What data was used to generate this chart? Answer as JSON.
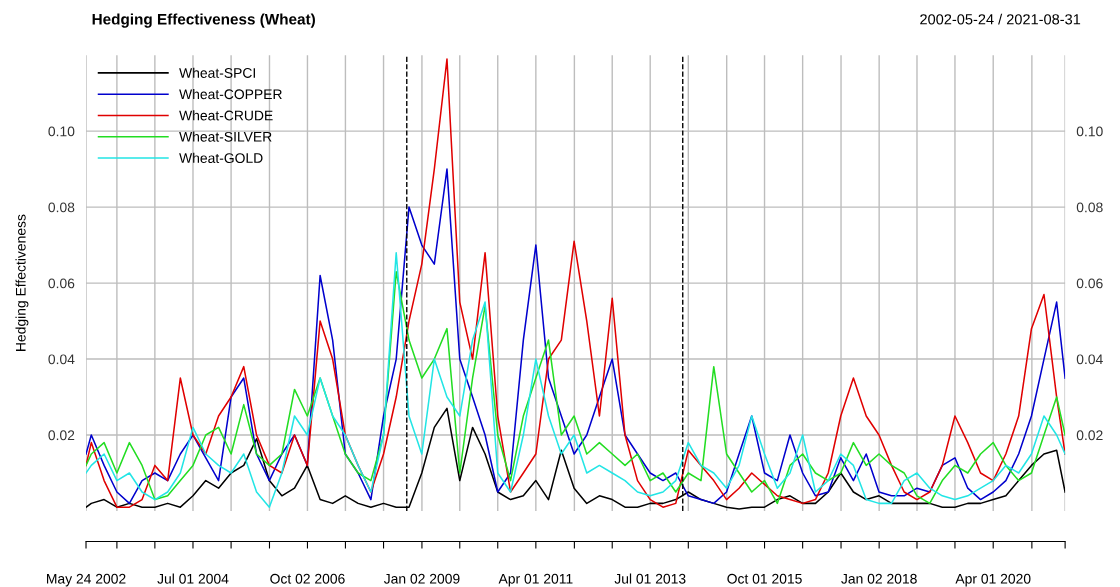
{
  "chart_data": {
    "type": "line",
    "title": "Hedging Effectiveness (Wheat)",
    "ylabel": "Hedging Effectiveness",
    "annotations": [
      "2002-05-24 / 2021-08-31"
    ],
    "x": [
      "2002-05-24",
      "2002-07",
      "2002-10",
      "2003-01",
      "2003-04",
      "2003-07",
      "2003-10",
      "2004-01",
      "2004-04",
      "2004-07",
      "2004-10",
      "2005-01",
      "2005-04",
      "2005-07",
      "2005-10",
      "2006-01",
      "2006-04",
      "2006-07",
      "2006-10",
      "2007-01",
      "2007-04",
      "2007-07",
      "2007-10",
      "2008-01",
      "2008-04",
      "2008-07",
      "2008-10",
      "2009-01",
      "2009-04",
      "2009-07",
      "2009-10",
      "2010-01",
      "2010-04",
      "2010-07",
      "2010-10",
      "2011-01",
      "2011-04",
      "2011-07",
      "2011-10",
      "2012-01",
      "2012-04",
      "2012-07",
      "2012-10",
      "2013-01",
      "2013-04",
      "2013-07",
      "2013-10",
      "2014-01",
      "2014-04",
      "2014-07",
      "2014-10",
      "2015-01",
      "2015-04",
      "2015-07",
      "2015-10",
      "2016-01",
      "2016-04",
      "2016-07",
      "2016-10",
      "2017-01",
      "2017-04",
      "2017-07",
      "2017-10",
      "2018-01",
      "2018-04",
      "2018-07",
      "2018-10",
      "2019-01",
      "2019-04",
      "2019-07",
      "2019-10",
      "2020-01",
      "2020-04",
      "2020-07",
      "2020-10",
      "2021-01",
      "2021-04",
      "2021-07",
      "2021-08-31"
    ],
    "series": [
      {
        "name": "Wheat-SPCI",
        "color": "#000000",
        "values": [
          0.001,
          0.002,
          0.003,
          0.001,
          0.002,
          0.001,
          0.001,
          0.002,
          0.001,
          0.004,
          0.008,
          0.006,
          0.01,
          0.012,
          0.019,
          0.008,
          0.004,
          0.006,
          0.012,
          0.003,
          0.002,
          0.004,
          0.002,
          0.001,
          0.002,
          0.001,
          0.001,
          0.01,
          0.022,
          0.027,
          0.008,
          0.022,
          0.015,
          0.005,
          0.003,
          0.004,
          0.008,
          0.003,
          0.016,
          0.006,
          0.002,
          0.004,
          0.003,
          0.001,
          0.001,
          0.002,
          0.002,
          0.003,
          0.005,
          0.003,
          0.002,
          0.001,
          0.0005,
          0.001,
          0.001,
          0.003,
          0.004,
          0.002,
          0.002,
          0.005,
          0.01,
          0.005,
          0.003,
          0.004,
          0.002,
          0.002,
          0.002,
          0.002,
          0.001,
          0.001,
          0.002,
          0.002,
          0.003,
          0.004,
          0.008,
          0.012,
          0.015,
          0.016,
          0.005
        ]
      },
      {
        "name": "Wheat-COPPER",
        "color": "#0000cd",
        "values": [
          0.015,
          0.02,
          0.012,
          0.005,
          0.002,
          0.008,
          0.01,
          0.008,
          0.015,
          0.02,
          0.014,
          0.008,
          0.03,
          0.035,
          0.015,
          0.008,
          0.015,
          0.02,
          0.012,
          0.062,
          0.045,
          0.015,
          0.01,
          0.003,
          0.025,
          0.04,
          0.08,
          0.07,
          0.065,
          0.09,
          0.04,
          0.03,
          0.02,
          0.005,
          0.01,
          0.045,
          0.07,
          0.035,
          0.025,
          0.015,
          0.02,
          0.03,
          0.04,
          0.02,
          0.015,
          0.01,
          0.008,
          0.01,
          0.004,
          0.003,
          0.002,
          0.005,
          0.015,
          0.025,
          0.01,
          0.008,
          0.02,
          0.01,
          0.004,
          0.005,
          0.014,
          0.008,
          0.015,
          0.005,
          0.004,
          0.004,
          0.006,
          0.005,
          0.012,
          0.014,
          0.006,
          0.003,
          0.005,
          0.008,
          0.015,
          0.025,
          0.04,
          0.055,
          0.035
        ]
      },
      {
        "name": "Wheat-CRUDE",
        "color": "#e00000",
        "values": [
          0.012,
          0.018,
          0.008,
          0.001,
          0.001,
          0.003,
          0.012,
          0.008,
          0.035,
          0.02,
          0.015,
          0.025,
          0.03,
          0.038,
          0.02,
          0.012,
          0.01,
          0.02,
          0.012,
          0.05,
          0.04,
          0.02,
          0.012,
          0.005,
          0.015,
          0.03,
          0.05,
          0.065,
          0.09,
          0.119,
          0.055,
          0.04,
          0.068,
          0.025,
          0.005,
          0.01,
          0.015,
          0.04,
          0.045,
          0.071,
          0.05,
          0.025,
          0.056,
          0.02,
          0.008,
          0.003,
          0.001,
          0.002,
          0.016,
          0.012,
          0.008,
          0.003,
          0.006,
          0.01,
          0.007,
          0.004,
          0.003,
          0.002,
          0.003,
          0.01,
          0.025,
          0.035,
          0.025,
          0.02,
          0.012,
          0.005,
          0.003,
          0.005,
          0.012,
          0.025,
          0.018,
          0.01,
          0.008,
          0.015,
          0.025,
          0.048,
          0.057,
          0.03,
          0.015
        ]
      },
      {
        "name": "Wheat-SILVER",
        "color": "#22dd22",
        "values": [
          0.012,
          0.015,
          0.018,
          0.01,
          0.018,
          0.012,
          0.003,
          0.004,
          0.008,
          0.012,
          0.02,
          0.022,
          0.015,
          0.028,
          0.015,
          0.012,
          0.015,
          0.032,
          0.025,
          0.035,
          0.025,
          0.015,
          0.01,
          0.008,
          0.02,
          0.063,
          0.045,
          0.035,
          0.04,
          0.048,
          0.01,
          0.035,
          0.054,
          0.02,
          0.008,
          0.025,
          0.035,
          0.045,
          0.02,
          0.025,
          0.015,
          0.018,
          0.015,
          0.012,
          0.015,
          0.008,
          0.01,
          0.005,
          0.01,
          0.008,
          0.038,
          0.015,
          0.01,
          0.005,
          0.008,
          0.002,
          0.012,
          0.015,
          0.01,
          0.008,
          0.01,
          0.018,
          0.012,
          0.015,
          0.012,
          0.01,
          0.004,
          0.002,
          0.008,
          0.012,
          0.01,
          0.015,
          0.018,
          0.012,
          0.008,
          0.01,
          0.02,
          0.03,
          0.02
        ]
      },
      {
        "name": "Wheat-GOLD",
        "color": "#22e5e5",
        "values": [
          0.01,
          0.012,
          0.015,
          0.008,
          0.01,
          0.005,
          0.003,
          0.005,
          0.01,
          0.022,
          0.015,
          0.012,
          0.01,
          0.015,
          0.005,
          0.001,
          0.01,
          0.025,
          0.02,
          0.035,
          0.025,
          0.02,
          0.012,
          0.005,
          0.02,
          0.068,
          0.025,
          0.015,
          0.04,
          0.03,
          0.025,
          0.045,
          0.055,
          0.01,
          0.005,
          0.02,
          0.04,
          0.025,
          0.015,
          0.02,
          0.01,
          0.012,
          0.01,
          0.008,
          0.005,
          0.004,
          0.005,
          0.008,
          0.018,
          0.012,
          0.01,
          0.006,
          0.012,
          0.025,
          0.015,
          0.006,
          0.01,
          0.02,
          0.005,
          0.008,
          0.015,
          0.012,
          0.003,
          0.002,
          0.002,
          0.008,
          0.01,
          0.006,
          0.004,
          0.003,
          0.004,
          0.006,
          0.008,
          0.012,
          0.01,
          0.015,
          0.025,
          0.02,
          0.015
        ]
      }
    ],
    "xlim": [
      "2002-05-24",
      "2021-08-31"
    ],
    "xticks": [
      {
        "value": "2002-05-24",
        "label": "May 24 2002"
      },
      {
        "value": "2003-01-01",
        "label": null
      },
      {
        "value": "2003-10-01",
        "label": null
      },
      {
        "value": "2004-07-01",
        "label": "Jul 01 2004"
      },
      {
        "value": "2005-04-01",
        "label": null
      },
      {
        "value": "2006-01-02",
        "label": null
      },
      {
        "value": "2006-10-02",
        "label": "Oct 02 2006"
      },
      {
        "value": "2007-07-02",
        "label": null
      },
      {
        "value": "2008-04-01",
        "label": null
      },
      {
        "value": "2009-01-02",
        "label": "Jan 02 2009"
      },
      {
        "value": "2009-10-01",
        "label": null
      },
      {
        "value": "2010-07-01",
        "label": null
      },
      {
        "value": "2011-04-01",
        "label": "Apr 01 2011"
      },
      {
        "value": "2012-01-03",
        "label": null
      },
      {
        "value": "2012-10-01",
        "label": null
      },
      {
        "value": "2013-07-01",
        "label": "Jul 01 2013"
      },
      {
        "value": "2014-04-01",
        "label": null
      },
      {
        "value": "2015-01-02",
        "label": null
      },
      {
        "value": "2015-10-01",
        "label": "Oct 01 2015"
      },
      {
        "value": "2016-07-01",
        "label": null
      },
      {
        "value": "2017-04-03",
        "label": null
      },
      {
        "value": "2018-01-02",
        "label": "Jan 02 2018"
      },
      {
        "value": "2018-10-01",
        "label": null
      },
      {
        "value": "2019-07-01",
        "label": null
      },
      {
        "value": "2020-04-01",
        "label": "Apr 01 2020"
      },
      {
        "value": "2021-01-04",
        "label": null
      },
      {
        "value": "2021-08-31",
        "label": null
      }
    ],
    "ylim": [
      0,
      0.12
    ],
    "yticks": [
      0.02,
      0.04,
      0.06,
      0.08,
      {
        "value": 0.1,
        "label": "0.10"
      }
    ],
    "y2lim": [
      0,
      0.12
    ],
    "y2ticks": [
      0.02,
      0.04,
      0.06,
      0.08,
      {
        "value": 0.1,
        "label": "0.10"
      }
    ],
    "ref_lines": [
      {
        "axis": "x",
        "value": "2008-09-15",
        "color": "#000000",
        "line_style": "dashed"
      },
      {
        "axis": "x",
        "value": "2014-02-20",
        "color": "#000000",
        "line_style": "dashed"
      }
    ],
    "grid": true,
    "legend": "top left",
    "line_style": "solid"
  }
}
